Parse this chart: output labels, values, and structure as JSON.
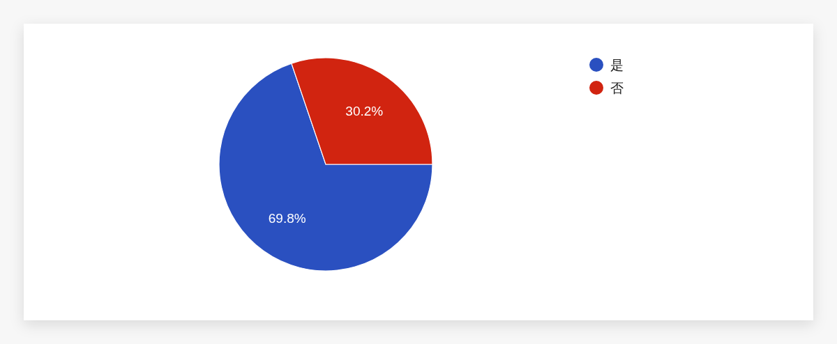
{
  "chart_data": {
    "type": "pie",
    "categories": [
      "是",
      "否"
    ],
    "values": [
      69.8,
      30.2
    ],
    "colors": [
      "#2a50c0",
      "#d12410"
    ],
    "value_labels": [
      "69.8%",
      "30.2%"
    ],
    "legend": "top right"
  }
}
